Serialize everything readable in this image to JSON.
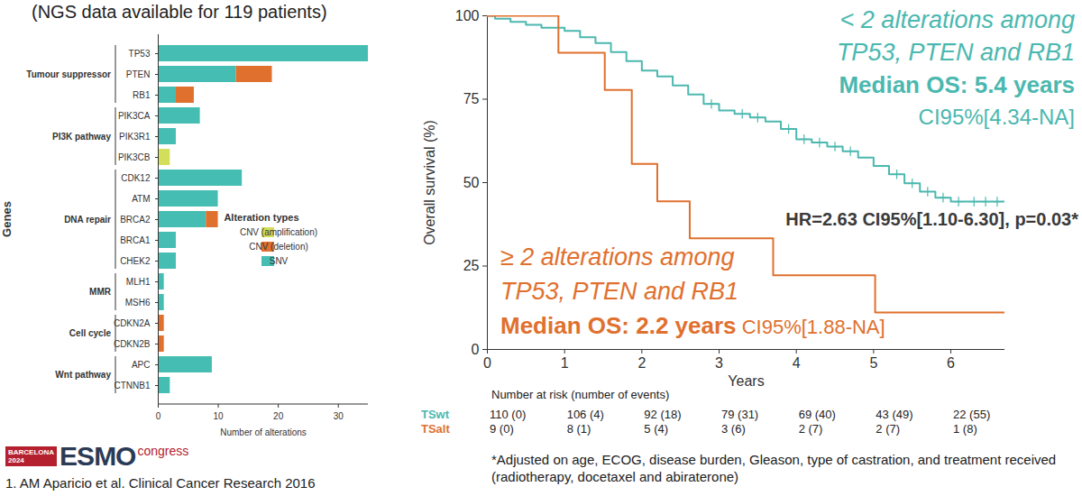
{
  "chart_data": [
    {
      "type": "bar",
      "orientation": "horizontal",
      "stacked": true,
      "title": "(NGS data available for 119 patients)",
      "x_label": "Number of alterations",
      "y_label": "Genes",
      "categories": [
        "TP53",
        "PTEN",
        "RB1",
        "PIK3CA",
        "PIK3R1",
        "PIK3CB",
        "CDK12",
        "ATM",
        "BRCA2",
        "BRCA1",
        "CHEK2",
        "MLH1",
        "MSH6",
        "CDKN2A",
        "CDKN2B",
        "APC",
        "CTNNB1"
      ],
      "groups": [
        {
          "name": "Tumour suppressor",
          "categories": [
            "TP53",
            "PTEN",
            "RB1"
          ]
        },
        {
          "name": "PI3K pathway",
          "categories": [
            "PIK3CA",
            "PIK3R1",
            "PIK3CB"
          ]
        },
        {
          "name": "DNA repair",
          "categories": [
            "CDK12",
            "ATM",
            "BRCA2",
            "BRCA1",
            "CHEK2"
          ]
        },
        {
          "name": "MMR",
          "categories": [
            "MLH1",
            "MSH6"
          ]
        },
        {
          "name": "Cell cycle",
          "categories": [
            "CDKN2A",
            "CDKN2B"
          ]
        },
        {
          "name": "Wnt pathway",
          "categories": [
            "APC",
            "CTNNB1"
          ]
        }
      ],
      "series": [
        {
          "name": "CNV (amplification)",
          "color": "#d3df5b",
          "values": [
            0,
            0,
            0,
            0,
            0,
            2,
            0,
            0,
            0,
            0,
            0,
            0,
            0,
            0,
            0,
            0,
            0
          ]
        },
        {
          "name": "CNV (deletion)",
          "color": "#e0702e",
          "values": [
            0,
            6,
            3,
            0,
            0,
            0,
            0,
            0,
            2,
            0,
            0,
            0,
            0,
            1,
            1,
            0,
            0
          ]
        },
        {
          "name": "SNV",
          "color": "#45bdb3",
          "values": [
            35,
            13,
            3,
            7,
            3,
            0,
            14,
            10,
            8,
            3,
            3,
            1,
            1,
            0,
            0,
            9,
            2
          ]
        }
      ],
      "legend_title": "Alteration types",
      "legend": "right",
      "xlim": [
        0,
        35
      ],
      "xticks": [
        0,
        10,
        20,
        30
      ],
      "source": "1. AM Aparicio et al. Clinical Cancer Research 2016",
      "logo": {
        "city": "BARCELONA",
        "year": "2024",
        "name": "ESMO",
        "suffix": "congress"
      }
    },
    {
      "type": "line",
      "line_style": "step",
      "x_label": "Years",
      "y_label": "Overall survival (%)",
      "xlim": [
        0,
        6.7
      ],
      "xticks": [
        0,
        1,
        2,
        3,
        4,
        5,
        6
      ],
      "ylim": [
        0,
        100
      ],
      "yticks": [
        0,
        25,
        50,
        75,
        100
      ],
      "series": [
        {
          "name": "TSwt",
          "color": "#4bb8b0",
          "marker": "plus",
          "x": [
            0,
            0.1,
            0.3,
            0.5,
            0.7,
            1.0,
            1.2,
            1.4,
            1.6,
            1.8,
            2.0,
            2.2,
            2.4,
            2.6,
            2.8,
            3.0,
            3.2,
            3.4,
            3.6,
            3.8,
            4.0,
            4.2,
            4.4,
            4.6,
            4.8,
            5.0,
            5.2,
            5.4,
            5.6,
            5.8,
            6.0,
            6.7
          ],
          "values": [
            100,
            99.1,
            98.2,
            97.3,
            96.4,
            95.5,
            93.6,
            91.8,
            89.1,
            86.4,
            83.6,
            81.8,
            79.1,
            76.4,
            73.6,
            71.6,
            70.6,
            69.5,
            68.3,
            66.1,
            63.0,
            62.0,
            60.8,
            59.4,
            57.5,
            55.0,
            52.5,
            49.8,
            47.3,
            45.5,
            44.3,
            44.3
          ],
          "censored": {
            "x": [
              2.9,
              3.3,
              3.5,
              3.9,
              4.1,
              4.3,
              4.5,
              4.7,
              5.3,
              5.5,
              5.7,
              5.9,
              6.1,
              6.3,
              6.45,
              6.6
            ],
            "values": [
              73.6,
              70.6,
              69.5,
              66.1,
              63.0,
              62.0,
              60.8,
              59.4,
              52.5,
              49.8,
              47.3,
              45.5,
              44.3,
              44.3,
              44.3,
              44.3
            ]
          }
        },
        {
          "name": "TSalt",
          "color": "#e0702e",
          "x": [
            0,
            0.92,
            1.52,
            1.87,
            2.2,
            2.62,
            3.7,
            5.02,
            6.7
          ],
          "values": [
            100,
            88.9,
            77.8,
            55.6,
            44.4,
            33.3,
            22.2,
            11.1,
            11.1
          ]
        }
      ],
      "annotations": [
        {
          "series": "TSwt",
          "lines": [
            "< 2 alterations among",
            "TP53, PTEN and RB1"
          ],
          "median": "Median OS: 5.4 years",
          "ci": "CI95%[4.34-NA]"
        },
        {
          "series": "TSalt",
          "lines": [
            "≥ 2 alterations among",
            "TP53, PTEN and RB1"
          ],
          "median": "Median OS: 2.2 years",
          "ci": "CI95%[1.88-NA]"
        }
      ],
      "hazard_ratio": "HR=2.63 CI95%[1.10-6.30], p=0.03*",
      "risk_table": {
        "title": "Number at risk (number of events)",
        "times": [
          0,
          1,
          2,
          3,
          4,
          5,
          6
        ],
        "rows": [
          {
            "series": "TSwt",
            "cells": [
              "110 (0)",
              "106 (4)",
              "92 (18)",
              "79 (31)",
              "69 (40)",
              "43 (49)",
              "22 (55)"
            ]
          },
          {
            "series": "TSalt",
            "cells": [
              "9 (0)",
              "8 (1)",
              "5 (4)",
              "3 (6)",
              "2 (7)",
              "2 (7)",
              "1 (8)"
            ]
          }
        ]
      },
      "footnote": "*Adjusted on age, ECOG, disease burden, Gleason, type of castration, and treatment received (radiotherapy, docetaxel and abiraterone)"
    }
  ]
}
